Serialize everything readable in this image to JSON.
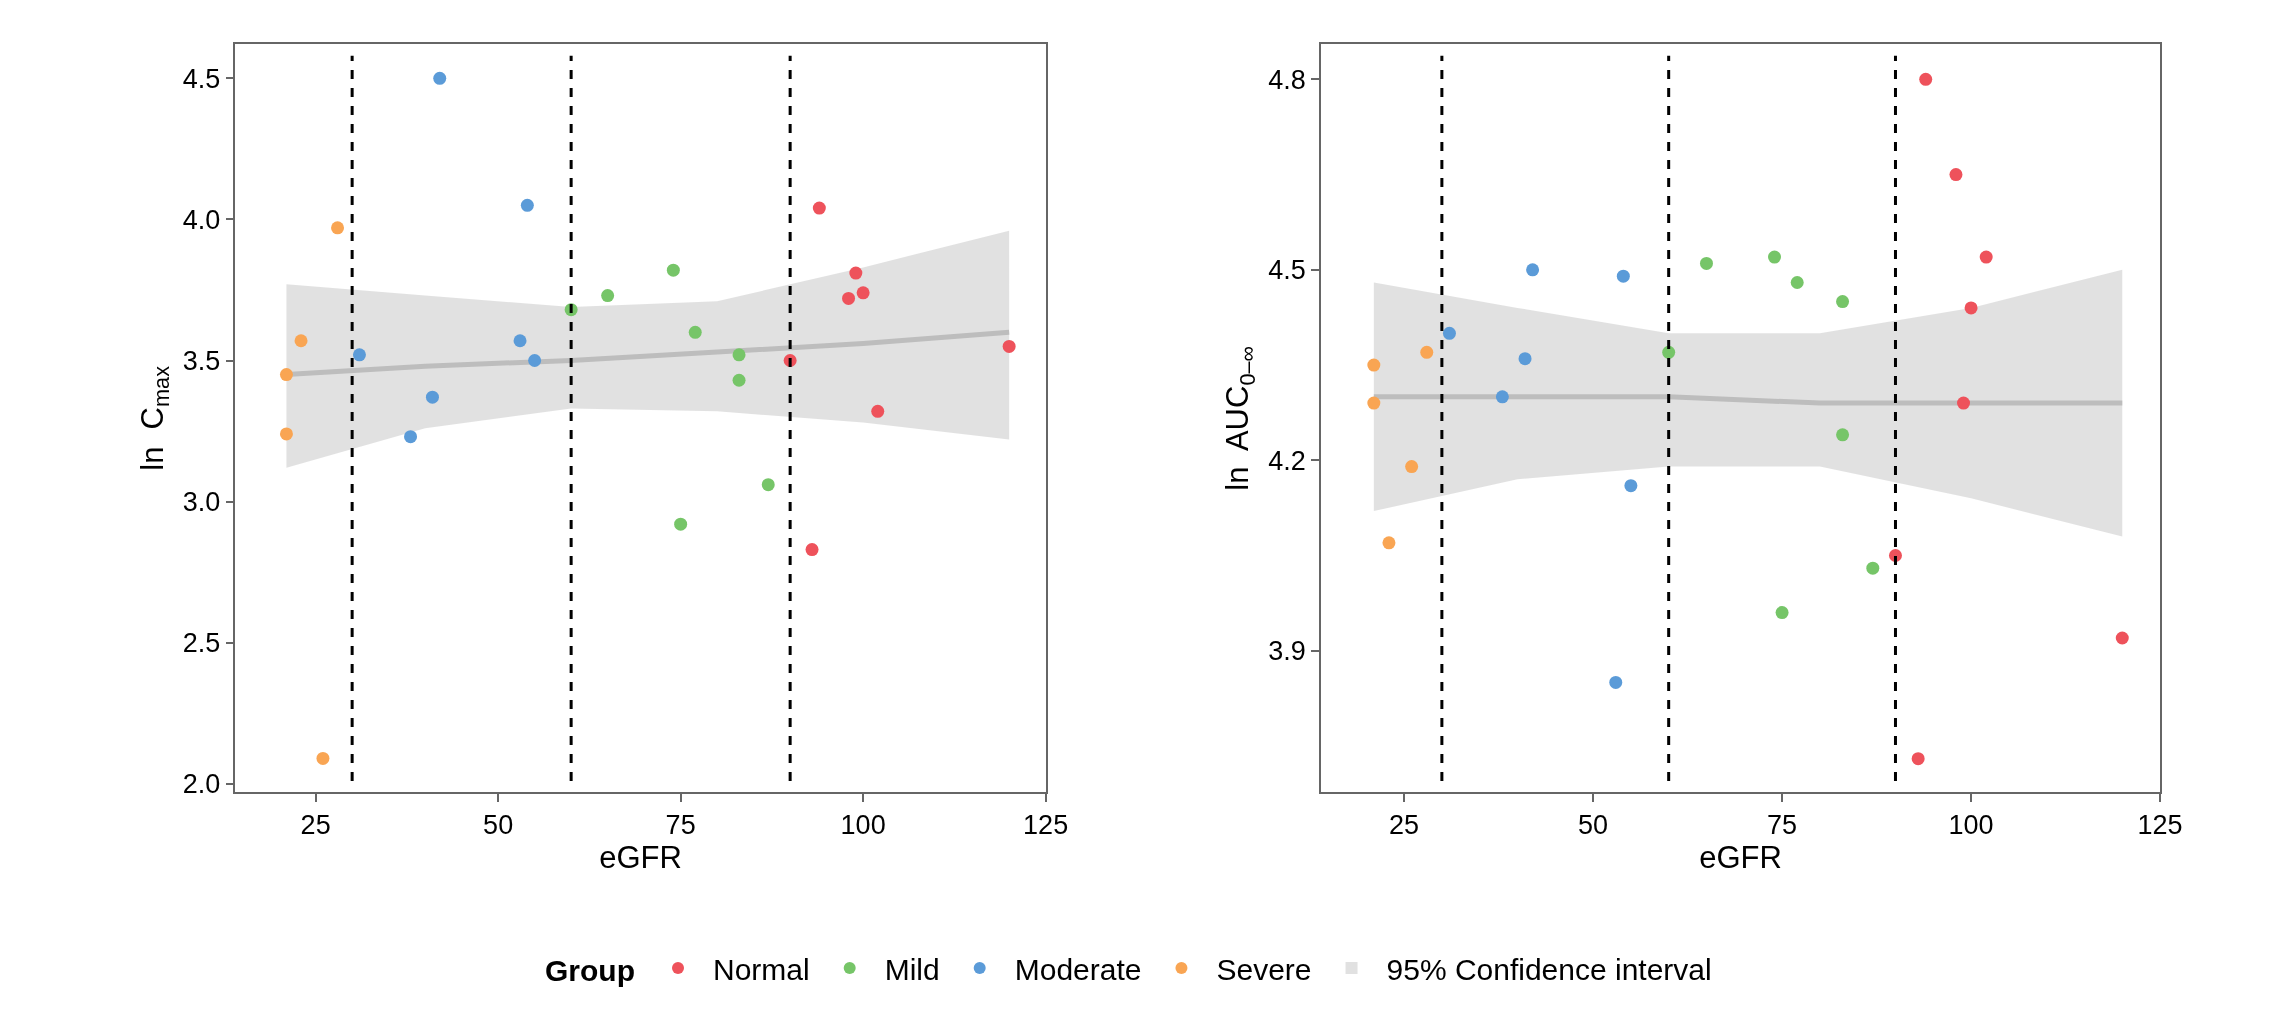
{
  "chart_data": [
    {
      "type": "scatter",
      "xlabel": "eGFR",
      "ylabel": "ln  C$_{max}$",
      "legend_title": "Group",
      "legend": "bottom",
      "marker": "circle",
      "xlim": [
        14,
        125
      ],
      "xticks": [
        25,
        50,
        75,
        100,
        125
      ],
      "ylim": [
        1.97,
        4.62
      ],
      "yticks": [
        {
          "value": 2,
          "label": "2.0"
        },
        2.5,
        {
          "value": 3,
          "label": "3.0"
        },
        3.5,
        {
          "value": 4,
          "label": "4.0"
        },
        4.5
      ],
      "ref_lines": [
        {
          "axis": "x",
          "value": 30,
          "color": "#000000",
          "line_style": "dashed"
        },
        {
          "axis": "x",
          "value": 60,
          "color": "#000000",
          "line_style": "dashed"
        },
        {
          "axis": "x",
          "value": 90,
          "color": "#000000",
          "line_style": "dashed"
        }
      ],
      "series": [
        {
          "type": "line",
          "marker": "none",
          "name": "95% Confidence interval",
          "color": "#bdbdbd",
          "x": [
            21,
            40,
            60,
            80,
            100,
            120
          ],
          "values": [
            3.45,
            3.48,
            3.5,
            3.53,
            3.56,
            3.6
          ],
          "lower": [
            3.12,
            3.26,
            3.33,
            3.32,
            3.28,
            3.22
          ],
          "upper": [
            3.77,
            3.73,
            3.69,
            3.71,
            3.83,
            3.96
          ]
        },
        {
          "name": "Normal",
          "color": "#ee525b",
          "x": [
            94,
            99,
            98,
            100,
            90,
            120,
            102,
            93
          ],
          "values": [
            4.04,
            3.81,
            3.72,
            3.74,
            3.5,
            3.55,
            3.32,
            2.83
          ]
        },
        {
          "name": "Mild",
          "color": "#76c568",
          "x": [
            74,
            65,
            60,
            77,
            83,
            83,
            87,
            75
          ],
          "values": [
            3.82,
            3.73,
            3.68,
            3.6,
            3.52,
            3.43,
            3.06,
            2.92
          ]
        },
        {
          "name": "Moderate",
          "color": "#5b9bd8",
          "x": [
            42,
            54,
            31,
            53,
            55,
            41,
            38
          ],
          "values": [
            4.5,
            4.05,
            3.52,
            3.57,
            3.5,
            3.37,
            3.23
          ]
        },
        {
          "name": "Severe",
          "color": "#f9a553",
          "x": [
            28,
            23,
            21,
            21,
            26
          ],
          "values": [
            3.97,
            3.57,
            3.45,
            3.24,
            2.09
          ]
        }
      ]
    },
    {
      "type": "scatter",
      "xlabel": "eGFR",
      "ylabel": "ln  AUC$_{0–∞}$",
      "marker": "circle",
      "xlim": [
        14,
        125
      ],
      "xticks": [
        25,
        50,
        75,
        100,
        125
      ],
      "ylim": [
        3.677,
        4.855
      ],
      "yticks": [
        3.9,
        4.2,
        4.5,
        4.8
      ],
      "ref_lines": [
        {
          "axis": "x",
          "value": 30,
          "color": "#000000",
          "line_style": "dashed"
        },
        {
          "axis": "x",
          "value": 60,
          "color": "#000000",
          "line_style": "dashed"
        },
        {
          "axis": "x",
          "value": 90,
          "color": "#000000",
          "line_style": "dashed"
        }
      ],
      "series": [
        {
          "type": "line",
          "marker": "none",
          "color": "#bdbdbd",
          "x": [
            21,
            40,
            60,
            80,
            100,
            120
          ],
          "values": [
            4.3,
            4.3,
            4.3,
            4.29,
            4.29,
            4.29
          ],
          "lower": [
            4.12,
            4.17,
            4.19,
            4.19,
            4.14,
            4.08
          ],
          "upper": [
            4.48,
            4.44,
            4.4,
            4.4,
            4.44,
            4.5
          ]
        },
        {
          "color": "#ee525b",
          "x": [
            94,
            98,
            102,
            100,
            99,
            90,
            120,
            93
          ],
          "values": [
            4.8,
            4.65,
            4.52,
            4.44,
            4.29,
            4.05,
            3.92,
            3.73
          ]
        },
        {
          "color": "#76c568",
          "x": [
            65,
            74,
            77,
            83,
            60,
            83,
            87,
            75
          ],
          "values": [
            4.51,
            4.52,
            4.48,
            4.45,
            4.37,
            4.24,
            4.03,
            3.96
          ]
        },
        {
          "color": "#5b9bd8",
          "x": [
            42,
            54,
            31,
            41,
            38,
            55,
            53
          ],
          "values": [
            4.5,
            4.49,
            4.4,
            4.36,
            4.3,
            4.16,
            3.85
          ]
        },
        {
          "color": "#f9a553",
          "x": [
            21,
            21,
            28,
            26,
            23
          ],
          "values": [
            4.35,
            4.29,
            4.37,
            4.19,
            4.07
          ]
        }
      ]
    }
  ]
}
